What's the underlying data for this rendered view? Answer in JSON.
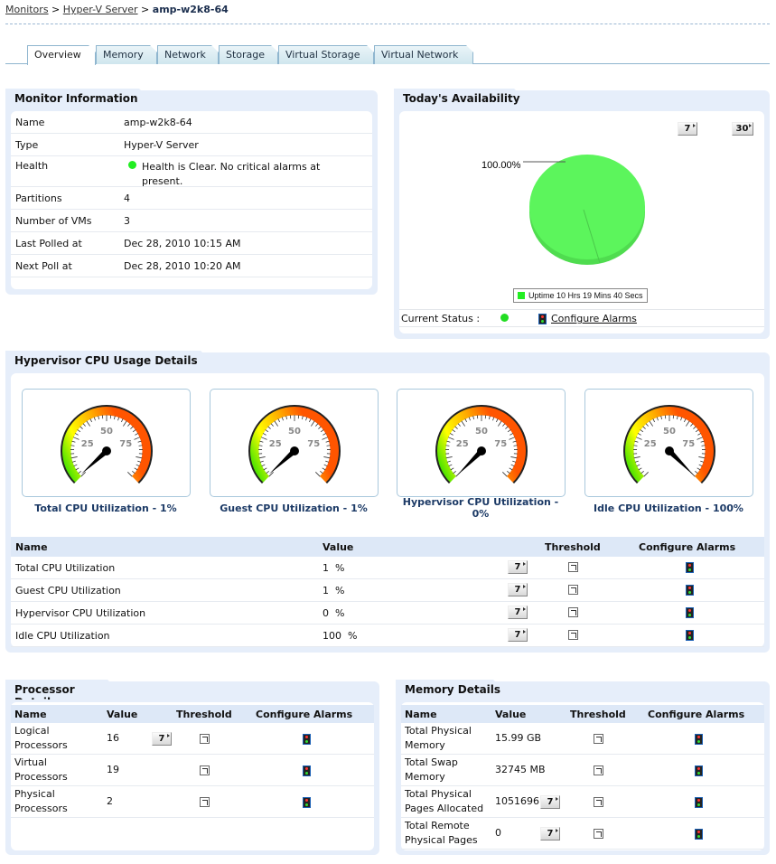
{
  "breadcrumb": {
    "items": [
      "Monitors",
      "Hyper-V Server"
    ],
    "current": "amp-w2k8-64"
  },
  "tabs": [
    "Overview",
    "Memory",
    "Network",
    "Storage",
    "Virtual Storage",
    "Virtual Network"
  ],
  "monitor_info": {
    "title": "Monitor Information",
    "rows": [
      {
        "label": "Name",
        "value": "amp-w2k8-64"
      },
      {
        "label": "Type",
        "value": "Hyper-V Server"
      },
      {
        "label": "Health",
        "value": "Health is Clear. No critical alarms at present."
      },
      {
        "label": "Partitions",
        "value": "4"
      },
      {
        "label": "Number of VMs",
        "value": "3"
      },
      {
        "label": "Last Polled at",
        "value": "Dec 28, 2010 10:15 AM"
      },
      {
        "label": "Next Poll at",
        "value": "Dec 28, 2010 10:20 AM"
      }
    ]
  },
  "availability": {
    "title": "Today's Availability",
    "btn7": "7",
    "btn30": "30",
    "pie_label": "100.00%",
    "legend": "Uptime 10 Hrs 19 Mins 40 Secs",
    "current_status_label": "Current Status :",
    "configure_alarms": "Configure Alarms"
  },
  "chart_data": {
    "type": "pie",
    "categories": [
      "Uptime"
    ],
    "values": [
      100
    ],
    "colors": [
      "#5cf55c"
    ]
  },
  "cpu": {
    "title": "Hypervisor CPU Usage Details",
    "gauges": [
      {
        "label": "Total CPU Utilization - 1%",
        "value": 1
      },
      {
        "label": "Guest CPU Utilization - 1%",
        "value": 1
      },
      {
        "label": "Hypervisor CPU Utilization - 0%",
        "value": 0
      },
      {
        "label": "Idle CPU Utilization - 100%",
        "value": 100
      }
    ],
    "gauge_ticks": [
      "25",
      "50",
      "75"
    ],
    "headers": [
      "Name",
      "Value",
      "Threshold",
      "Configure Alarms"
    ],
    "rows": [
      {
        "name": "Total CPU Utilization",
        "value": "1  %",
        "btn": "7"
      },
      {
        "name": "Guest CPU Utilization",
        "value": "1  %",
        "btn": "7"
      },
      {
        "name": "Hypervisor CPU Utilization",
        "value": "0  %",
        "btn": "7"
      },
      {
        "name": "Idle CPU Utilization",
        "value": "100  %",
        "btn": "7"
      }
    ]
  },
  "processor": {
    "title": "Processor Details",
    "headers": [
      "Name",
      "Value",
      "Threshold",
      "Configure Alarms"
    ],
    "rows": [
      {
        "name": "Logical Processors",
        "value": "16",
        "btn": "7"
      },
      {
        "name": "Virtual Processors",
        "value": "19"
      },
      {
        "name": "Physical Processors",
        "value": "2"
      }
    ]
  },
  "memory": {
    "title": "Memory Details",
    "headers": [
      "Name",
      "Value",
      "Threshold",
      "Configure Alarms"
    ],
    "rows": [
      {
        "name": "Total Physical Memory",
        "value": "15.99 GB"
      },
      {
        "name": "Total Swap Memory",
        "value": "32745 MB"
      },
      {
        "name": "Total Physical Pages Allocated",
        "value": "1051696",
        "btn": "7"
      },
      {
        "name": "Total Remote Physical Pages",
        "value": "0",
        "btn": "7"
      }
    ]
  },
  "colors": {
    "panel": "#e6eefa",
    "accent": "#1c3a66",
    "healthy": "#33dd33"
  }
}
